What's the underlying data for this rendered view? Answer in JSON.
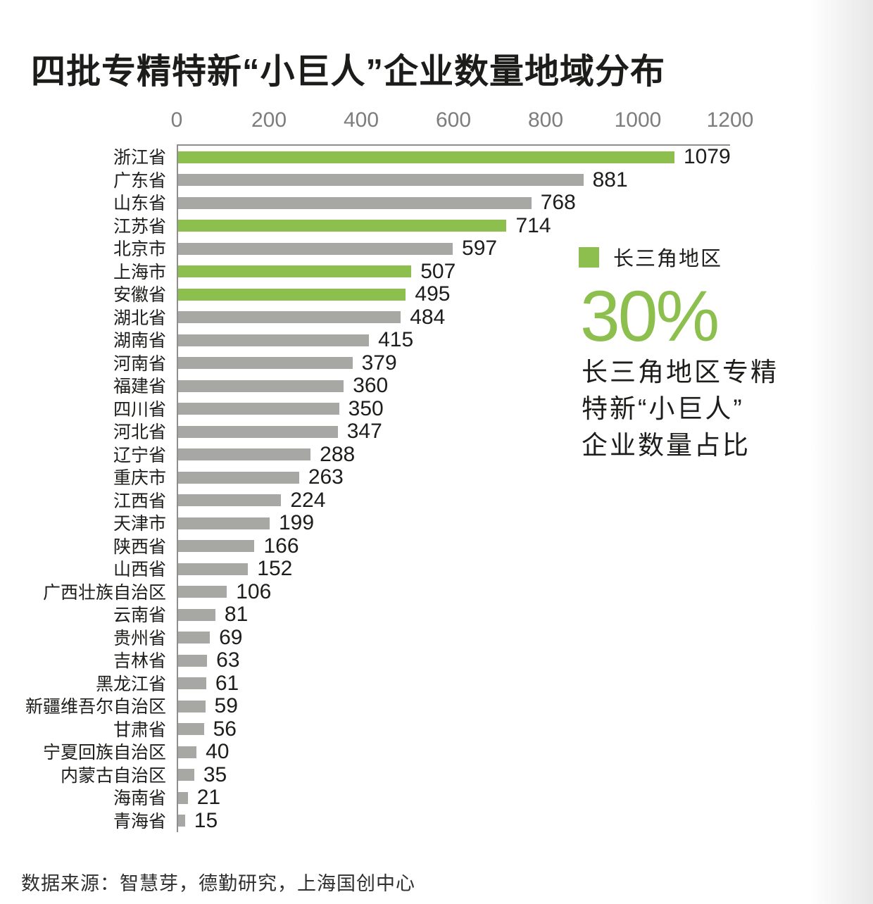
{
  "page": {
    "title": "四批专精特新“小巨人”企业数量地域分布",
    "source": "数据来源：智慧芽，德勤研究，上海国创中心"
  },
  "legend": {
    "label": "长三角地区",
    "color": "#8CBF4D"
  },
  "stat": {
    "value": "30%",
    "color": "#8CBF4D",
    "lines": [
      "长三角地区专精",
      "特新“小巨人”",
      "企业数量占比"
    ]
  },
  "chart_data": {
    "type": "bar",
    "orientation": "horizontal",
    "title": "四批专精特新“小巨人”企业数量地域分布",
    "categories": [
      "浙江省",
      "广东省",
      "山东省",
      "江苏省",
      "北京市",
      "上海市",
      "安徽省",
      "湖北省",
      "湖南省",
      "河南省",
      "福建省",
      "四川省",
      "河北省",
      "辽宁省",
      "重庆市",
      "江西省",
      "天津市",
      "陕西省",
      "山西省",
      "广西壮族自治区",
      "云南省",
      "贵州省",
      "吉林省",
      "黑龙江省",
      "新疆维吾尔自治区",
      "甘肃省",
      "宁夏回族自治区",
      "内蒙古自治区",
      "海南省",
      "青海省"
    ],
    "values": [
      1079,
      881,
      768,
      714,
      597,
      507,
      495,
      484,
      415,
      379,
      360,
      350,
      347,
      288,
      263,
      224,
      199,
      166,
      152,
      106,
      81,
      69,
      63,
      61,
      59,
      56,
      40,
      35,
      21,
      15
    ],
    "highlighted": [
      "浙江省",
      "江苏省",
      "上海市",
      "安徽省"
    ],
    "highlight_label": "长三角地区",
    "xlim": [
      0,
      1200
    ],
    "x_ticks": [
      0,
      200,
      400,
      600,
      800,
      1000,
      1200
    ],
    "bar_color": "#A7A7A4",
    "highlight_color": "#8CBF4D",
    "axis_color": "#8E8E8E",
    "grid": false,
    "value_labels": true,
    "legend_position": "right"
  }
}
